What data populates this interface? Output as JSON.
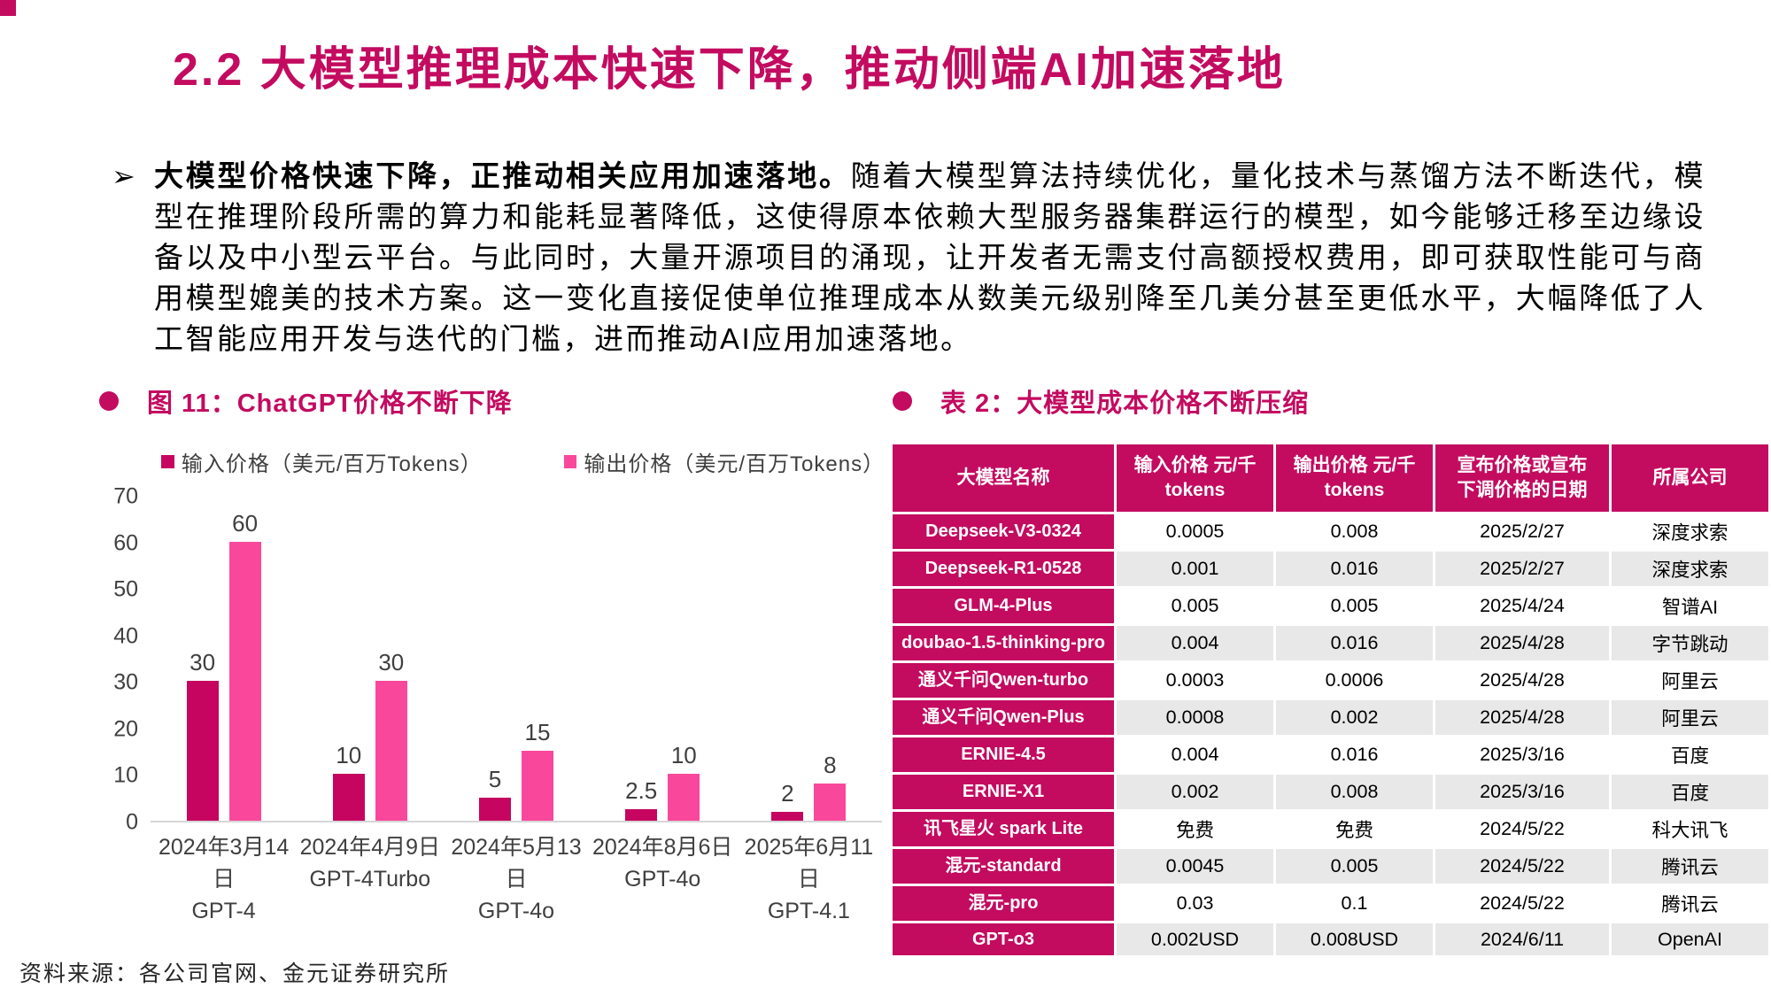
{
  "header": {
    "title": "2.2 大模型推理成本快速下降，推动侧端AI加速落地"
  },
  "paragraph": {
    "bullet": "➢",
    "lead_bold": "大模型价格快速下降，正推动相关应用加速落地。",
    "body": "随着大模型算法持续优化，量化技术与蒸馏方法不断迭代，模型在推理阶段所需的算力和能耗显著降低，这使得原本依赖大型服务器集群运行的模型，如今能够迁移至边缘设备以及中小型云平台。与此同时，大量开源项目的涌现，让开发者无需支付高额授权费用，即可获取性能可与商用模型媲美的技术方案。这一变化直接促使单位推理成本从数美元级别降至几美分甚至更低水平，大幅降低了人工智能应用开发与迭代的门槛，进而推动AI应用加速落地。"
  },
  "figure": {
    "heading": "图 11：ChatGPT价格不断下降"
  },
  "chart_data": {
    "type": "bar",
    "title": "图 11：ChatGPT价格不断下降",
    "categories": [
      "2024年3月14日",
      "2024年4月9日",
      "2024年5月13日",
      "2024年8月6日",
      "2025年6月11日"
    ],
    "models": [
      "GPT-4",
      "GPT-4Turbo",
      "GPT-4o",
      "GPT-4o",
      "GPT-4.1"
    ],
    "series": [
      {
        "name": "输入价格（美元/百万Tokens）",
        "color": "#C50560",
        "values": [
          30,
          10,
          5,
          2.5,
          2
        ]
      },
      {
        "name": "输出价格（美元/百万Tokens）",
        "color": "#F9489B",
        "values": [
          60,
          30,
          15,
          10,
          8
        ]
      }
    ],
    "ylim": [
      0,
      70
    ],
    "yticks": [
      0,
      10,
      20,
      30,
      40,
      50,
      60,
      70
    ],
    "grid": false,
    "legend_position": "top",
    "value_labels": true
  },
  "table": {
    "heading": "表 2：大模型成本价格不断压缩",
    "columns": [
      "大模型名称",
      "输入价格 元/千\ntokens",
      "输出价格 元/千\ntokens",
      "宣布价格或宣布\n下调价格的日期",
      "所属公司"
    ],
    "rows": [
      [
        "Deepseek-V3-0324",
        "0.0005",
        "0.008",
        "2025/2/27",
        "深度求索"
      ],
      [
        "Deepseek-R1-0528",
        "0.001",
        "0.016",
        "2025/2/27",
        "深度求索"
      ],
      [
        "GLM-4-Plus",
        "0.005",
        "0.005",
        "2025/4/24",
        "智谱AI"
      ],
      [
        "doubao-1.5-thinking-pro",
        "0.004",
        "0.016",
        "2025/4/28",
        "字节跳动"
      ],
      [
        "通义千问Qwen-turbo",
        "0.0003",
        "0.0006",
        "2025/4/28",
        "阿里云"
      ],
      [
        "通义千问Qwen-Plus",
        "0.0008",
        "0.002",
        "2025/4/28",
        "阿里云"
      ],
      [
        "ERNIE-4.5",
        "0.004",
        "0.016",
        "2025/3/16",
        "百度"
      ],
      [
        "ERNIE-X1",
        "0.002",
        "0.008",
        "2025/3/16",
        "百度"
      ],
      [
        "讯飞星火 spark Lite",
        "免费",
        "免费",
        "2024/5/22",
        "科大讯飞"
      ],
      [
        "混元-standard",
        "0.0045",
        "0.005",
        "2024/5/22",
        "腾讯云"
      ],
      [
        "混元-pro",
        "0.03",
        "0.1",
        "2024/5/22",
        "腾讯云"
      ],
      [
        "GPT-o3",
        "0.002USD",
        "0.008USD",
        "2024/6/11",
        "OpenAI"
      ]
    ]
  },
  "footer": {
    "source": "资料来源：各公司官网、金元证券研究所"
  },
  "colors": {
    "primary": "#C30B60",
    "bar_input": "#C50560",
    "bar_output": "#F9489B",
    "row_alt": "#E8E8E8"
  }
}
